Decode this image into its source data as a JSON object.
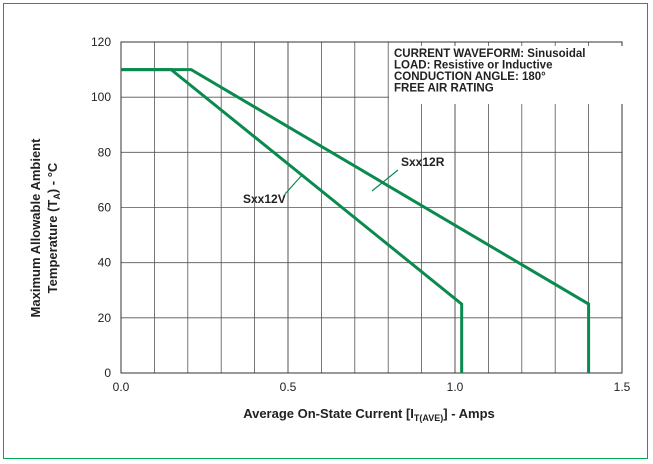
{
  "chart_data": {
    "type": "line",
    "title": "",
    "xlabel": {
      "prefix": "Average On-State Current [I",
      "sub": "T(AVE)",
      "suffix": "] - Amps"
    },
    "ylabel": {
      "line1": "Maximum Allowable Ambient",
      "line2_prefix": "Temperature (T",
      "line2_sub": "A",
      "line2_suffix": ") - °C"
    },
    "xlim": [
      0,
      1.5
    ],
    "ylim": [
      0,
      120
    ],
    "xticks": [
      0,
      0.5,
      1.0,
      1.5
    ],
    "xtick_labels": [
      "0.0",
      "0.5",
      "1.0",
      "1.5"
    ],
    "yticks": [
      0,
      20,
      40,
      60,
      80,
      100,
      120
    ],
    "ytick_labels": [
      "0",
      "20",
      "40",
      "60",
      "80",
      "100",
      "120"
    ],
    "grid": true,
    "line_color": "#0b8a50",
    "notes": [
      "CURRENT WAVEFORM: Sinusoidal",
      "LOAD: Resistive or Inductive",
      "CONDUCTION ANGLE: 180°",
      "FREE AIR RATING"
    ],
    "series": [
      {
        "name": "Sxx12V",
        "x": [
          0,
          0.15,
          1.02,
          1.02
        ],
        "y": [
          110,
          110,
          25,
          0
        ]
      },
      {
        "name": "Sxx12R",
        "x": [
          0,
          0.21,
          1.4,
          1.4
        ],
        "y": [
          110,
          110,
          25,
          0
        ]
      }
    ]
  }
}
